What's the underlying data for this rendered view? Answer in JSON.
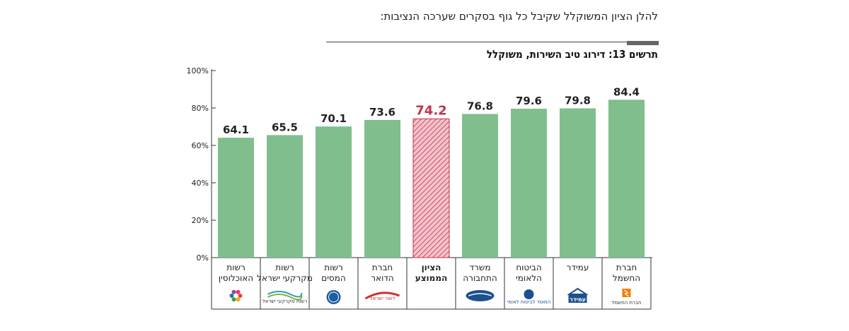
{
  "intro_text": "להלן הציון המשוקלל שקיבל כל גוף בסקרים שערכה הנציבות:",
  "chart_data": {
    "type": "bar",
    "title": "תרשים 13: דירוג טיב השירות, משוקלל",
    "categories": [
      [
        "רשות",
        "האוכלוסין"
      ],
      [
        "רשות",
        "מקרקעי ישראל"
      ],
      [
        "רשות",
        "המסים"
      ],
      [
        "חברת",
        "הדואר"
      ],
      [
        "הציון",
        "הממוצע"
      ],
      [
        "משרד",
        "התחבורה"
      ],
      [
        "הביטוח",
        "הלאומי"
      ],
      [
        "עמידר"
      ],
      [
        "חברת",
        "החשמל"
      ]
    ],
    "values": [
      64.1,
      65.5,
      70.1,
      73.6,
      74.2,
      76.8,
      79.6,
      79.8,
      84.4
    ],
    "value_labels": [
      "64.1",
      "65.5",
      "70.1",
      "73.6",
      "74.2",
      "76.8",
      "79.6",
      "79.8",
      "84.4"
    ],
    "highlight_index": 4,
    "yticks": [
      "0%",
      "20%",
      "40%",
      "60%",
      "80%",
      "100%"
    ],
    "ylim": [
      0,
      100
    ],
    "grid": false,
    "colors": {
      "bar": "#80be8e",
      "highlight": "#c0334d",
      "highlight_fill": "#f2b8c0"
    },
    "logos": [
      "population-authority-logo",
      "land-authority-logo",
      "tax-authority-logo",
      "israel-post-logo",
      "",
      "transport-ministry-logo",
      "national-insurance-logo",
      "amidar-logo",
      "electric-company-logo"
    ],
    "logo_texts": [
      "",
      "רשות מקרקעי ישראל",
      "",
      "דואר ישראל",
      "",
      "",
      "המוסד לביטוח לאומי",
      "עמידר",
      "חברת החשמל"
    ]
  }
}
